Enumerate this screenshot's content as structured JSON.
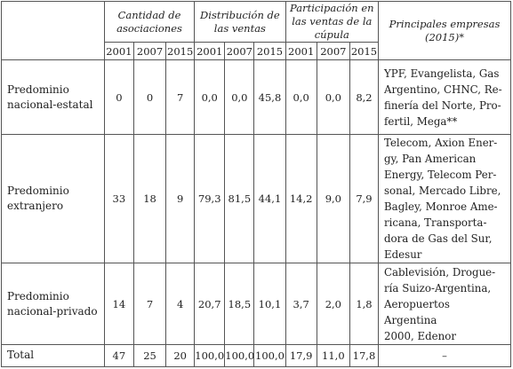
{
  "headers": {
    "group1": "Cantidad de asociaciones",
    "group2": "Distribución de las ventas",
    "group3": "Participación en las ventas de la cúpula",
    "companies": "Principales empresas (2015)*",
    "years": [
      "2001",
      "2007",
      "2015"
    ]
  },
  "rows": [
    {
      "label_lines": [
        "Predominio",
        "nacional-estatal"
      ],
      "values": [
        "0",
        "0",
        "7",
        "0,0",
        "0,0",
        "45,8",
        "0,0",
        "0,0",
        "8,2"
      ],
      "companies_lines": [
        "YPF, Evangelista, Gas",
        "Argentino, CHNC, Re-",
        "finería del Norte, Pro-",
        "fertil, Mega**"
      ]
    },
    {
      "label_lines": [
        "Predominio",
        "extranjero"
      ],
      "values": [
        "33",
        "18",
        "9",
        "79,3",
        "81,5",
        "44,1",
        "14,2",
        "9,0",
        "7,9"
      ],
      "companies_lines": [
        "Telecom, Axion Ener-",
        "gy, Pan American",
        "Energy, Telecom Per-",
        "sonal, Mercado Libre,",
        "Bagley, Monroe Ame-",
        "ricana, Transporta-",
        "dora de Gas del Sur,",
        "Edesur"
      ]
    },
    {
      "label_lines": [
        "Predominio",
        "nacional-privado"
      ],
      "values": [
        "14",
        "7",
        "4",
        "20,7",
        "18,5",
        "10,1",
        "3,7",
        "2,0",
        "1,8"
      ],
      "companies_lines": [
        "Cablevisión, Drogue-",
        "ría Suizo-Argentina,",
        "Aeropuertos Argentina",
        "2000, Edenor"
      ]
    }
  ],
  "total": {
    "label": "Total",
    "values": [
      "47",
      "25",
      "20",
      "100,0",
      "100,0",
      "100,0",
      "17,9",
      "11,0",
      "17,8"
    ],
    "companies": "–"
  }
}
